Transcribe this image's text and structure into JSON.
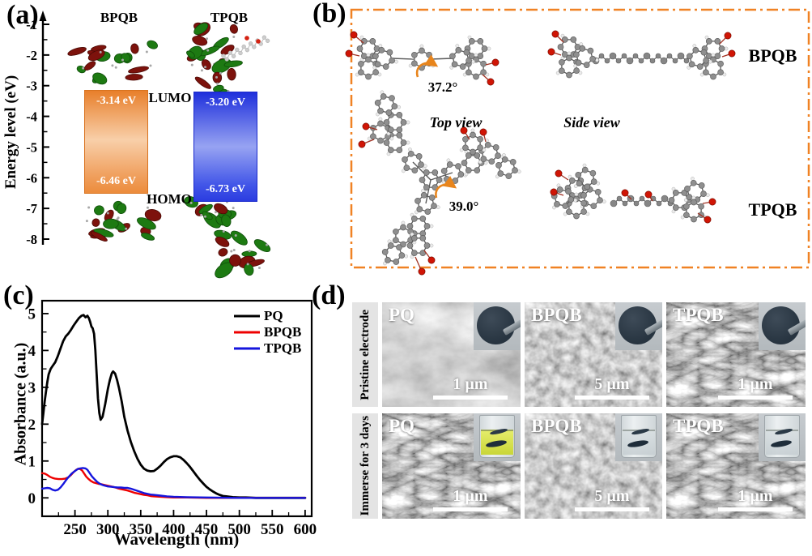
{
  "figure": {
    "panel_a": {
      "tag": "(a)",
      "axis_title": "Energy level (eV)",
      "axis_ticks": [
        -1,
        -2,
        -3,
        -4,
        -5,
        -6,
        -7,
        -8
      ],
      "left_molecule": "BPQB",
      "right_molecule": "TPQB",
      "lumo_label": "LUMO",
      "homo_label": "HOMO",
      "left": {
        "lumo": "-3.14 eV",
        "homo": "-6.46 eV",
        "gap_color": "#ee8a3c"
      },
      "right": {
        "lumo": "-3.20 eV",
        "homo": "-6.73 eV",
        "gap_color": "#2c3fe2"
      }
    },
    "panel_b": {
      "tag": "(b)",
      "border_color": "#f08224",
      "labels": {
        "top_view": "Top view",
        "side_view": "Side view",
        "bpqb": "BPQB",
        "tpqb": "TPQB",
        "bpqb_dihedral": "37.2°",
        "tpqb_dihedral": "39.0°"
      }
    },
    "panel_c": {
      "tag": "(c)"
    },
    "panel_d": {
      "tag": "(d)",
      "row_labels": [
        "Pristine electrode",
        "Immerse for 3 days"
      ],
      "tiles": [
        {
          "label": "PQ",
          "scale_bar": "1 µm",
          "texture": "agglomerate",
          "inset": "electrode-disc"
        },
        {
          "label": "BPQB",
          "scale_bar": "5 µm",
          "texture": "granular",
          "inset": "electrode-disc"
        },
        {
          "label": "TPQB",
          "scale_bar": "1 µm",
          "texture": "fibrous",
          "inset": "electrode-disc"
        },
        {
          "label": "PQ",
          "scale_bar": "1 µm",
          "texture": "fibrous",
          "inset": "vial-yellow-solution"
        },
        {
          "label": "BPQB",
          "scale_bar": "5 µm",
          "texture": "granular",
          "inset": "vial-clear-solution"
        },
        {
          "label": "TPQB",
          "scale_bar": "1 µm",
          "texture": "fibrous",
          "inset": "vial-clear-solution"
        }
      ],
      "inset_colors": {
        "electrode_disc": "#2e3c49",
        "yellow_solution": "#d8e24b",
        "clear_solution": "#dde2e4"
      }
    }
  },
  "chart_data": {
    "type": "line",
    "title": "",
    "xlabel": "Wavelength (nm)",
    "ylabel": "Absorbance (a.u.)",
    "xlim": [
      200,
      610
    ],
    "ylim": [
      -0.5,
      5.35
    ],
    "x_ticks": [
      250,
      300,
      350,
      400,
      450,
      500,
      550,
      600
    ],
    "y_ticks": [
      0,
      1,
      2,
      3,
      4,
      5
    ],
    "grid": false,
    "legend_position": "top-right",
    "series": [
      {
        "name": "PQ",
        "color": "#000000",
        "points": [
          [
            200,
            2.0
          ],
          [
            202,
            2.3
          ],
          [
            204,
            2.62
          ],
          [
            206,
            2.9
          ],
          [
            208,
            3.15
          ],
          [
            210,
            3.35
          ],
          [
            213,
            3.5
          ],
          [
            216,
            3.58
          ],
          [
            220,
            3.68
          ],
          [
            224,
            3.85
          ],
          [
            228,
            4.05
          ],
          [
            232,
            4.25
          ],
          [
            236,
            4.38
          ],
          [
            240,
            4.46
          ],
          [
            244,
            4.56
          ],
          [
            248,
            4.68
          ],
          [
            252,
            4.78
          ],
          [
            256,
            4.88
          ],
          [
            260,
            4.94
          ],
          [
            263,
            4.96
          ],
          [
            266,
            4.9
          ],
          [
            269,
            4.94
          ],
          [
            271,
            4.88
          ],
          [
            273,
            4.78
          ],
          [
            275,
            4.65
          ],
          [
            277,
            4.6
          ],
          [
            279,
            4.45
          ],
          [
            281,
            4.0
          ],
          [
            283,
            3.35
          ],
          [
            285,
            2.7
          ],
          [
            287,
            2.3
          ],
          [
            289,
            2.12
          ],
          [
            292,
            2.2
          ],
          [
            296,
            2.55
          ],
          [
            300,
            2.95
          ],
          [
            303,
            3.2
          ],
          [
            306,
            3.38
          ],
          [
            308,
            3.43
          ],
          [
            311,
            3.37
          ],
          [
            314,
            3.2
          ],
          [
            317,
            2.98
          ],
          [
            321,
            2.62
          ],
          [
            325,
            2.2
          ],
          [
            330,
            1.82
          ],
          [
            335,
            1.52
          ],
          [
            340,
            1.27
          ],
          [
            345,
            1.06
          ],
          [
            350,
            0.9
          ],
          [
            355,
            0.79
          ],
          [
            360,
            0.74
          ],
          [
            365,
            0.72
          ],
          [
            370,
            0.73
          ],
          [
            375,
            0.79
          ],
          [
            380,
            0.87
          ],
          [
            385,
            0.97
          ],
          [
            390,
            1.05
          ],
          [
            395,
            1.1
          ],
          [
            400,
            1.13
          ],
          [
            405,
            1.13
          ],
          [
            410,
            1.1
          ],
          [
            415,
            1.03
          ],
          [
            420,
            0.94
          ],
          [
            425,
            0.84
          ],
          [
            430,
            0.72
          ],
          [
            435,
            0.6
          ],
          [
            440,
            0.49
          ],
          [
            445,
            0.39
          ],
          [
            450,
            0.3
          ],
          [
            455,
            0.23
          ],
          [
            460,
            0.17
          ],
          [
            465,
            0.12
          ],
          [
            470,
            0.08
          ],
          [
            475,
            0.05
          ],
          [
            480,
            0.04
          ],
          [
            490,
            0.02
          ],
          [
            500,
            0.01
          ],
          [
            510,
            0.01
          ],
          [
            525,
            0
          ],
          [
            550,
            0
          ],
          [
            575,
            0
          ],
          [
            600,
            0
          ]
        ]
      },
      {
        "name": "BPQB",
        "color": "#ee0000",
        "points": [
          [
            200,
            0.67
          ],
          [
            204,
            0.66
          ],
          [
            208,
            0.62
          ],
          [
            212,
            0.57
          ],
          [
            216,
            0.54
          ],
          [
            220,
            0.52
          ],
          [
            225,
            0.51
          ],
          [
            230,
            0.51
          ],
          [
            235,
            0.52
          ],
          [
            240,
            0.56
          ],
          [
            244,
            0.62
          ],
          [
            248,
            0.7
          ],
          [
            252,
            0.76
          ],
          [
            255,
            0.79
          ],
          [
            258,
            0.78
          ],
          [
            261,
            0.74
          ],
          [
            264,
            0.66
          ],
          [
            267,
            0.58
          ],
          [
            270,
            0.52
          ],
          [
            274,
            0.46
          ],
          [
            278,
            0.42
          ],
          [
            282,
            0.4
          ],
          [
            286,
            0.38
          ],
          [
            290,
            0.37
          ],
          [
            295,
            0.35
          ],
          [
            300,
            0.33
          ],
          [
            305,
            0.31
          ],
          [
            310,
            0.29
          ],
          [
            315,
            0.26
          ],
          [
            320,
            0.24
          ],
          [
            325,
            0.22
          ],
          [
            330,
            0.2
          ],
          [
            335,
            0.17
          ],
          [
            340,
            0.14
          ],
          [
            345,
            0.12
          ],
          [
            350,
            0.1
          ],
          [
            355,
            0.08
          ],
          [
            360,
            0.07
          ],
          [
            365,
            0.05
          ],
          [
            370,
            0.04
          ],
          [
            380,
            0.03
          ],
          [
            390,
            0.02
          ],
          [
            400,
            0.01
          ],
          [
            420,
            0.01
          ],
          [
            450,
            0
          ],
          [
            500,
            0
          ],
          [
            550,
            0
          ],
          [
            600,
            0
          ]
        ]
      },
      {
        "name": "TPQB",
        "color": "#1515dd",
        "points": [
          [
            200,
            0.25
          ],
          [
            204,
            0.26
          ],
          [
            208,
            0.27
          ],
          [
            212,
            0.26
          ],
          [
            216,
            0.22
          ],
          [
            220,
            0.2
          ],
          [
            224,
            0.22
          ],
          [
            228,
            0.28
          ],
          [
            232,
            0.37
          ],
          [
            236,
            0.47
          ],
          [
            240,
            0.56
          ],
          [
            245,
            0.66
          ],
          [
            250,
            0.73
          ],
          [
            254,
            0.78
          ],
          [
            258,
            0.8
          ],
          [
            262,
            0.81
          ],
          [
            266,
            0.8
          ],
          [
            269,
            0.76
          ],
          [
            272,
            0.68
          ],
          [
            276,
            0.58
          ],
          [
            280,
            0.5
          ],
          [
            284,
            0.43
          ],
          [
            288,
            0.38
          ],
          [
            292,
            0.35
          ],
          [
            296,
            0.33
          ],
          [
            300,
            0.31
          ],
          [
            305,
            0.3
          ],
          [
            310,
            0.29
          ],
          [
            315,
            0.28
          ],
          [
            320,
            0.28
          ],
          [
            325,
            0.27
          ],
          [
            330,
            0.27
          ],
          [
            335,
            0.25
          ],
          [
            340,
            0.22
          ],
          [
            345,
            0.19
          ],
          [
            350,
            0.16
          ],
          [
            355,
            0.13
          ],
          [
            360,
            0.11
          ],
          [
            365,
            0.09
          ],
          [
            370,
            0.08
          ],
          [
            380,
            0.06
          ],
          [
            390,
            0.04
          ],
          [
            400,
            0.03
          ],
          [
            420,
            0.02
          ],
          [
            450,
            0.01
          ],
          [
            500,
            0
          ],
          [
            550,
            0
          ],
          [
            600,
            0
          ]
        ]
      }
    ]
  }
}
